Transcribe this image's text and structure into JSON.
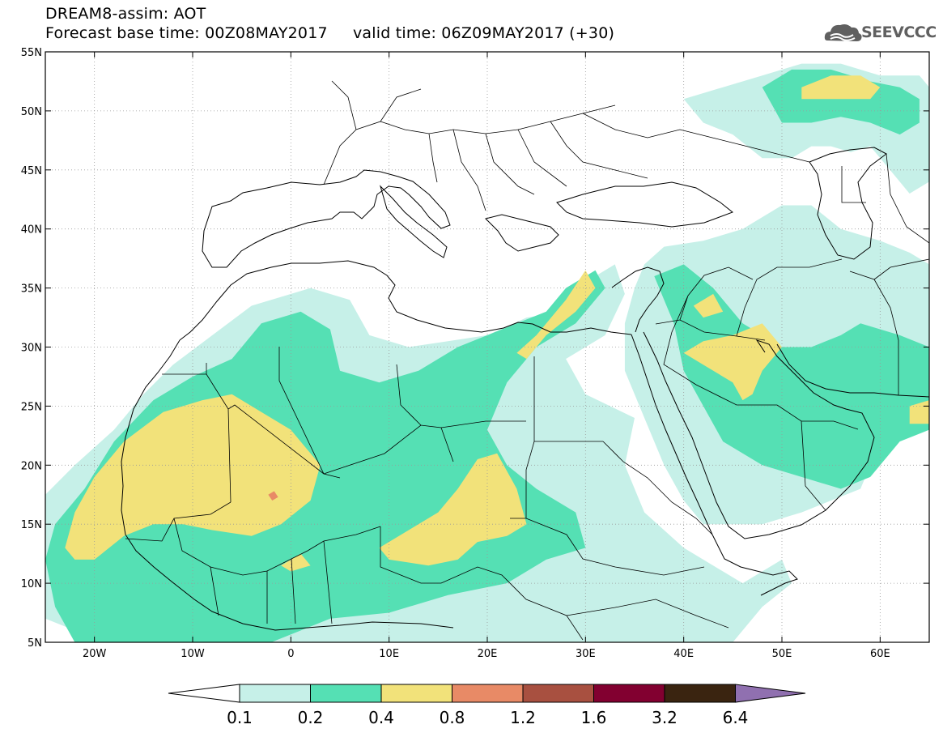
{
  "header": {
    "line1": "DREAM8-assim: AOT",
    "line2": "Forecast base time: 00Z08MAY2017     valid time: 06Z09MAY2017 (+30)",
    "logo_text": "SEEVCCC",
    "logo_icon": "cloud-icon"
  },
  "map": {
    "projection": "lat-lon",
    "lon_range": [
      -25,
      65
    ],
    "lat_range": [
      5,
      55
    ],
    "grid": "dotted",
    "lat_ticks": [
      {
        "value": 55,
        "label": "55N"
      },
      {
        "value": 50,
        "label": "50N"
      },
      {
        "value": 45,
        "label": "45N"
      },
      {
        "value": 40,
        "label": "40N"
      },
      {
        "value": 35,
        "label": "35N"
      },
      {
        "value": 30,
        "label": "30N"
      },
      {
        "value": 25,
        "label": "25N"
      },
      {
        "value": 20,
        "label": "20N"
      },
      {
        "value": 15,
        "label": "15N"
      },
      {
        "value": 10,
        "label": "10N"
      },
      {
        "value": 5,
        "label": "5N"
      }
    ],
    "lon_ticks": [
      {
        "value": -20,
        "label": "20W"
      },
      {
        "value": -10,
        "label": "10W"
      },
      {
        "value": 0,
        "label": "0"
      },
      {
        "value": 10,
        "label": "10E"
      },
      {
        "value": 20,
        "label": "20E"
      },
      {
        "value": 30,
        "label": "30E"
      },
      {
        "value": 40,
        "label": "40E"
      },
      {
        "value": 50,
        "label": "50E"
      },
      {
        "value": 60,
        "label": "60E"
      }
    ],
    "colors": {
      "c0_1": "#c6f0e8",
      "c0_2": "#55e0b4",
      "c0_4": "#f2e27a",
      "c0_8": "#e88a66"
    },
    "regions": [
      {
        "name": "aot-0.1-west-africa",
        "level": "c0_1",
        "points": [
          [
            -25,
            17.5
          ],
          [
            -22,
            20
          ],
          [
            -18,
            23
          ],
          [
            -15,
            26
          ],
          [
            -12,
            28.5
          ],
          [
            -8,
            31
          ],
          [
            -4,
            33.5
          ],
          [
            2,
            35
          ],
          [
            6,
            34
          ],
          [
            8,
            31
          ],
          [
            12,
            30
          ],
          [
            16,
            30.5
          ],
          [
            20,
            31
          ],
          [
            24,
            32.5
          ],
          [
            28,
            33
          ],
          [
            31,
            36
          ],
          [
            33,
            37
          ],
          [
            34,
            34.5
          ],
          [
            32,
            31
          ],
          [
            28,
            29
          ],
          [
            30,
            26
          ],
          [
            35,
            24
          ],
          [
            34,
            20
          ],
          [
            36,
            16
          ],
          [
            40,
            13
          ],
          [
            44,
            11
          ],
          [
            46,
            10
          ],
          [
            48,
            11
          ],
          [
            50,
            12
          ],
          [
            51,
            10
          ],
          [
            48,
            8
          ],
          [
            45,
            5
          ],
          [
            -19,
            5
          ],
          [
            -25,
            7
          ]
        ]
      },
      {
        "name": "aot-0.1-middle-east",
        "level": "c0_1",
        "points": [
          [
            36,
            37
          ],
          [
            38,
            38.5
          ],
          [
            42,
            39
          ],
          [
            46,
            40
          ],
          [
            48,
            41
          ],
          [
            50,
            42
          ],
          [
            53,
            42
          ],
          [
            56,
            40
          ],
          [
            60,
            39
          ],
          [
            63,
            38
          ],
          [
            65,
            37
          ],
          [
            65,
            25
          ],
          [
            62,
            24
          ],
          [
            60,
            22
          ],
          [
            58,
            18
          ],
          [
            55,
            17
          ],
          [
            52,
            16
          ],
          [
            48,
            15
          ],
          [
            45,
            15
          ],
          [
            42,
            15
          ],
          [
            40,
            17
          ],
          [
            38,
            20
          ],
          [
            36,
            24
          ],
          [
            34,
            28
          ],
          [
            34,
            32
          ],
          [
            35,
            35
          ]
        ]
      },
      {
        "name": "aot-0.1-caspian",
        "level": "c0_1",
        "points": [
          [
            40,
            51
          ],
          [
            44,
            52
          ],
          [
            48,
            53
          ],
          [
            52,
            54
          ],
          [
            56,
            54
          ],
          [
            60,
            53
          ],
          [
            64,
            53
          ],
          [
            65,
            52
          ],
          [
            65,
            44
          ],
          [
            63,
            43
          ],
          [
            61,
            45
          ],
          [
            59,
            47
          ],
          [
            57,
            46.5
          ],
          [
            55,
            47
          ],
          [
            53,
            47
          ],
          [
            51,
            46
          ],
          [
            48,
            46
          ],
          [
            45,
            48
          ],
          [
            42,
            49
          ]
        ]
      },
      {
        "name": "aot-0.2-sahel",
        "level": "c0_2",
        "points": [
          [
            -25,
            12
          ],
          [
            -24,
            15
          ],
          [
            -21,
            18
          ],
          [
            -18,
            22
          ],
          [
            -14,
            25.5
          ],
          [
            -10,
            27.5
          ],
          [
            -6,
            29
          ],
          [
            -3,
            32
          ],
          [
            1,
            33
          ],
          [
            4,
            31.5
          ],
          [
            5,
            28
          ],
          [
            9,
            27
          ],
          [
            13,
            28
          ],
          [
            17,
            30
          ],
          [
            20,
            31
          ],
          [
            23,
            32
          ],
          [
            26,
            33
          ],
          [
            28,
            35
          ],
          [
            31,
            36.5
          ],
          [
            32,
            35
          ],
          [
            29,
            32
          ],
          [
            25,
            30
          ],
          [
            22,
            27
          ],
          [
            20,
            23
          ],
          [
            22,
            20
          ],
          [
            25,
            18
          ],
          [
            29,
            16
          ],
          [
            30,
            13
          ],
          [
            26,
            12
          ],
          [
            22,
            10
          ],
          [
            16,
            9
          ],
          [
            10,
            7.5
          ],
          [
            4,
            7
          ],
          [
            -2,
            5
          ],
          [
            -22,
            5
          ],
          [
            -24,
            8
          ]
        ]
      },
      {
        "name": "aot-0.2-arabia",
        "level": "c0_2",
        "points": [
          [
            37,
            36
          ],
          [
            40,
            37
          ],
          [
            43,
            35
          ],
          [
            46,
            32
          ],
          [
            50,
            30
          ],
          [
            53,
            30
          ],
          [
            56,
            31
          ],
          [
            58,
            32
          ],
          [
            62,
            31
          ],
          [
            65,
            30
          ],
          [
            65,
            23
          ],
          [
            62,
            22
          ],
          [
            59,
            19
          ],
          [
            56,
            18
          ],
          [
            52,
            19
          ],
          [
            48,
            20
          ],
          [
            44,
            22
          ],
          [
            42,
            25
          ],
          [
            40,
            28
          ],
          [
            39,
            32
          ]
        ]
      },
      {
        "name": "aot-0.2-caspian-north",
        "level": "c0_2",
        "points": [
          [
            48,
            52
          ],
          [
            51,
            53.5
          ],
          [
            55,
            53.5
          ],
          [
            59,
            52.5
          ],
          [
            62,
            52
          ],
          [
            64,
            51
          ],
          [
            64,
            49
          ],
          [
            62,
            48
          ],
          [
            59,
            49
          ],
          [
            56,
            49.5
          ],
          [
            53,
            49
          ],
          [
            50,
            49
          ]
        ]
      },
      {
        "name": "aot-0.4-western-sahara",
        "level": "c0_4",
        "points": [
          [
            -23,
            13
          ],
          [
            -22,
            16
          ],
          [
            -20,
            19
          ],
          [
            -17,
            22
          ],
          [
            -13,
            24.5
          ],
          [
            -9,
            25.5
          ],
          [
            -6,
            26
          ],
          [
            -3,
            24.5
          ],
          [
            0,
            23
          ],
          [
            3,
            20
          ],
          [
            2,
            17
          ],
          [
            -1,
            15
          ],
          [
            -4,
            14
          ],
          [
            -8,
            14.5
          ],
          [
            -11,
            15
          ],
          [
            -14,
            15
          ],
          [
            -17,
            14
          ],
          [
            -20,
            12
          ],
          [
            -22,
            12
          ]
        ]
      },
      {
        "name": "aot-0.4-chad",
        "level": "c0_4",
        "points": [
          [
            9,
            13
          ],
          [
            12,
            14.5
          ],
          [
            15,
            16
          ],
          [
            17,
            18
          ],
          [
            19,
            20.5
          ],
          [
            21,
            21
          ],
          [
            23,
            18
          ],
          [
            24,
            15
          ],
          [
            22,
            14
          ],
          [
            19,
            13.5
          ],
          [
            17,
            12
          ],
          [
            14,
            11.5
          ],
          [
            10,
            12
          ]
        ]
      },
      {
        "name": "aot-0.4-egypt-coast",
        "level": "c0_4",
        "points": [
          [
            23,
            29.5
          ],
          [
            25,
            31
          ],
          [
            28,
            34
          ],
          [
            30,
            36.5
          ],
          [
            31,
            35
          ],
          [
            29,
            33
          ],
          [
            26,
            31
          ],
          [
            24,
            29
          ]
        ]
      },
      {
        "name": "aot-0.4-mesopotamia",
        "level": "c0_4",
        "points": [
          [
            40,
            29.5
          ],
          [
            42,
            30.5
          ],
          [
            45,
            31
          ],
          [
            48,
            32
          ],
          [
            50,
            30
          ],
          [
            48,
            28
          ],
          [
            47,
            26
          ],
          [
            46,
            25.5
          ],
          [
            45,
            27
          ],
          [
            42,
            28.5
          ]
        ]
      },
      {
        "name": "aot-0.4-kazakh",
        "level": "c0_4",
        "points": [
          [
            52,
            52
          ],
          [
            55,
            53
          ],
          [
            58,
            53
          ],
          [
            60,
            52
          ],
          [
            59,
            51
          ],
          [
            55,
            51
          ],
          [
            52,
            51
          ]
        ]
      },
      {
        "name": "aot-0.4-iran-east",
        "level": "c0_4",
        "points": [
          [
            63,
            25
          ],
          [
            65,
            25.5
          ],
          [
            65,
            23.5
          ],
          [
            63,
            23.5
          ]
        ]
      },
      {
        "name": "aot-0.4-nigeria-spot",
        "level": "c0_4",
        "points": [
          [
            -1,
            11.5
          ],
          [
            1,
            12.5
          ],
          [
            2,
            11.5
          ],
          [
            0,
            11
          ]
        ]
      },
      {
        "name": "aot-0.4-iraq-spot",
        "level": "c0_4",
        "points": [
          [
            41,
            33.5
          ],
          [
            43,
            34.5
          ],
          [
            44,
            33
          ],
          [
            42,
            32.5
          ]
        ]
      },
      {
        "name": "aot-0.8-mauritania-spot",
        "level": "c0_8",
        "points": [
          [
            -2.3,
            17.5
          ],
          [
            -1.7,
            17.8
          ],
          [
            -1.3,
            17.3
          ],
          [
            -1.9,
            17
          ]
        ]
      }
    ]
  },
  "colorbar": {
    "labels": [
      "0.1",
      "0.2",
      "0.4",
      "0.8",
      "1.2",
      "1.6",
      "3.2",
      "6.4"
    ],
    "colors": [
      "#ffffff",
      "#c6f0e8",
      "#55e0b4",
      "#f2e27a",
      "#e88a66",
      "#a85040",
      "#820030",
      "#3a2410",
      "#9070b0"
    ]
  }
}
